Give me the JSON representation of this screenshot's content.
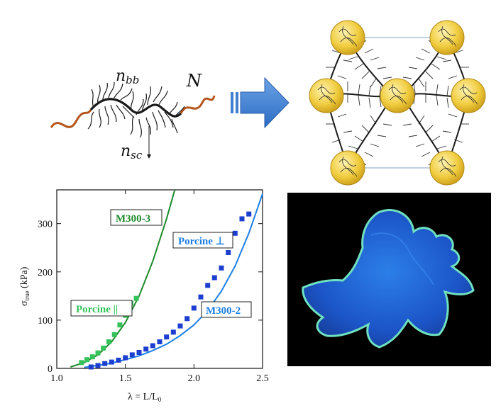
{
  "figure": {
    "polymer_labels": {
      "backbone": "n",
      "backbone_sub": "bb",
      "side_chain": "n",
      "side_chain_sub": "sc",
      "linear_block": "N"
    },
    "colors": {
      "backbone": "#1a1a1a",
      "end_block": "#b5561c",
      "arrow": "#3f7fd0",
      "node_fill": "#e9c33a",
      "green": "#1e8a2c",
      "green_points": "#35c25a",
      "blue_line": "#1b7fe6",
      "blue_points": "#1d3fd0",
      "gel_blue": "#1e63d6",
      "gel_edge": "#6fe0c0"
    },
    "network_description_icons": [
      "bottlebrush-polymer-icon",
      "right-arrow-icon",
      "bottlebrush-network-icon"
    ]
  },
  "chart_data": {
    "type": "scatter",
    "xlabel": "λ = L/L",
    "xlabel_sub": "0",
    "ylabel": "σ",
    "ylabel_sub": "true",
    "ylabel_unit": "(kPa)",
    "xlim": [
      1.0,
      2.5
    ],
    "ylim": [
      0,
      370
    ],
    "x_ticks": [
      "1.0",
      "1.5",
      "2.0",
      "2.5"
    ],
    "y_ticks": [
      "0",
      "100",
      "200",
      "300"
    ],
    "x_tick_values": [
      1.0,
      1.5,
      2.0,
      2.5
    ],
    "y_tick_values": [
      0,
      100,
      200,
      300
    ],
    "series": [
      {
        "name": "Porcine ||",
        "kind": "points",
        "color": "#35c25a",
        "x": [
          1.18,
          1.22,
          1.26,
          1.3,
          1.34,
          1.38,
          1.42,
          1.46,
          1.5,
          1.54,
          1.58
        ],
        "y": [
          12,
          18,
          24,
          32,
          42,
          55,
          70,
          90,
          110,
          135,
          145
        ]
      },
      {
        "name": "M300-3",
        "kind": "line",
        "color": "#1e8a2c",
        "x": [
          1.1,
          1.2,
          1.3,
          1.4,
          1.5,
          1.6,
          1.7,
          1.8,
          1.86
        ],
        "y": [
          3,
          12,
          28,
          55,
          95,
          150,
          222,
          310,
          370
        ]
      },
      {
        "name": "Porcine ⊥",
        "kind": "points",
        "color": "#1d3fd0",
        "x": [
          1.25,
          1.3,
          1.35,
          1.4,
          1.45,
          1.5,
          1.55,
          1.6,
          1.65,
          1.7,
          1.75,
          1.8,
          1.85,
          1.9,
          1.95,
          2.0,
          2.05,
          2.1,
          2.15,
          2.2,
          2.25,
          2.3,
          2.35,
          2.4
        ],
        "y": [
          3,
          6,
          10,
          13,
          17,
          22,
          28,
          33,
          40,
          47,
          55,
          65,
          75,
          88,
          103,
          125,
          148,
          172,
          188,
          208,
          240,
          280,
          310,
          320
        ]
      },
      {
        "name": "M300-2",
        "kind": "line",
        "color": "#1b7fe6",
        "x": [
          1.2,
          1.3,
          1.4,
          1.5,
          1.6,
          1.7,
          1.8,
          1.9,
          2.0,
          2.1,
          2.2,
          2.3,
          2.4,
          2.5
        ],
        "y": [
          2,
          6,
          11,
          18,
          26,
          37,
          50,
          68,
          90,
          120,
          160,
          212,
          280,
          362
        ]
      }
    ],
    "annotations": [
      {
        "text": "M300-3",
        "color": "#1e8a2c"
      },
      {
        "text": "Porcine ⊥",
        "color": "#1b7fe6"
      },
      {
        "text": "Porcine ||",
        "color": "#35c25a"
      },
      {
        "text": "M300-2",
        "color": "#1b7fe6"
      }
    ]
  }
}
